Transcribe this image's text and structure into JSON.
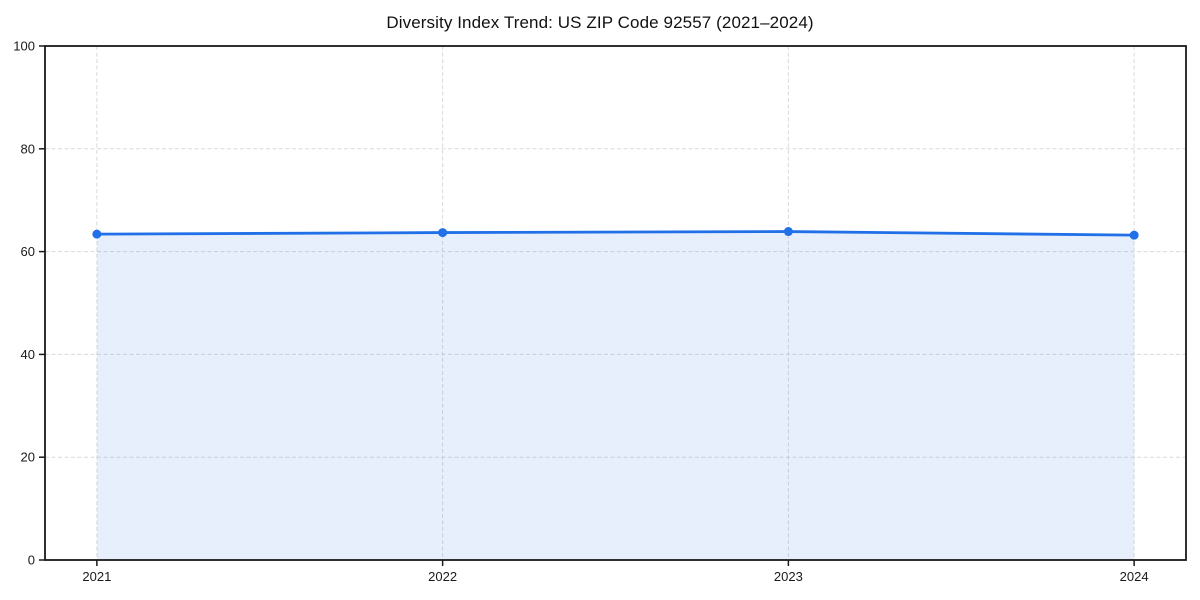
{
  "chart_data": {
    "type": "line",
    "title": "Diversity Index Trend: US ZIP Code 92557 (2021–2024)",
    "x": [
      2021,
      2022,
      2023,
      2024
    ],
    "series": [
      {
        "name": "Diversity Index",
        "values": [
          63.4,
          63.7,
          63.9,
          63.2
        ]
      }
    ],
    "xlabel": "",
    "ylabel": "",
    "xtick_labels": [
      "2021",
      "2022",
      "2023",
      "2024"
    ],
    "yticks": [
      0,
      20,
      40,
      60,
      80,
      100
    ],
    "ylim": [
      0,
      100
    ],
    "grid": true,
    "grid_style": "dashed",
    "legend": "none",
    "area_fill_under_line": true,
    "colors": {
      "line": "#2170E8",
      "marker": "#2170E8",
      "area_fill": "#2170E8",
      "area_opacity": 0.11,
      "grid": "#D9D9D9",
      "spine": "#1A1A1A",
      "tick_text": "#1A1A1A",
      "background": "#FFFFFF"
    }
  }
}
